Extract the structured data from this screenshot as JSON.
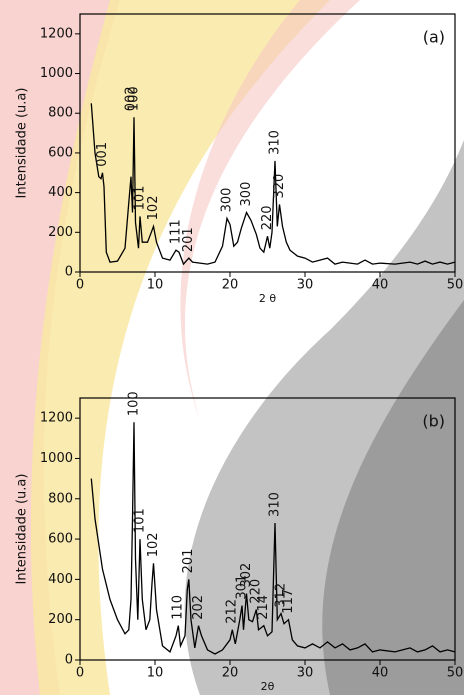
{
  "chart_data": [
    {
      "type": "line",
      "panel_label": "(a)",
      "x_label": "2 θ",
      "y_label": "Intensidade (u.a)",
      "color": "#000000",
      "xlim": [
        0,
        50
      ],
      "xticks": [
        0,
        10,
        20,
        30,
        40,
        50
      ],
      "ylim": [
        0,
        1300
      ],
      "yticks": [
        0,
        200,
        400,
        600,
        800,
        1000,
        1200
      ],
      "x": [
        1.5,
        2,
        2.5,
        2.8,
        3.0,
        3.2,
        3.5,
        4,
        5,
        6,
        6.5,
        6.8,
        7.0,
        7.2,
        7.4,
        7.8,
        8.0,
        8.3,
        9,
        9.5,
        9.8,
        10.2,
        11,
        12,
        12.8,
        13.2,
        13.8,
        14.5,
        15,
        16,
        17,
        18,
        19,
        19.6,
        20,
        20.5,
        21,
        21.5,
        22.2,
        22.8,
        23.5,
        24,
        24.5,
        25,
        25.3,
        25.6,
        26.0,
        26.3,
        26.6,
        27,
        27.5,
        28,
        29,
        30,
        31,
        32,
        33,
        34,
        35,
        36,
        37,
        38,
        39,
        40,
        42,
        44,
        45,
        46,
        47,
        48,
        49,
        50
      ],
      "values": [
        850,
        600,
        480,
        470,
        500,
        430,
        100,
        50,
        55,
        120,
        350,
        480,
        300,
        780,
        250,
        120,
        280,
        150,
        150,
        200,
        230,
        150,
        70,
        60,
        110,
        100,
        40,
        70,
        50,
        45,
        40,
        50,
        130,
        270,
        240,
        130,
        150,
        220,
        300,
        260,
        190,
        120,
        100,
        180,
        120,
        200,
        560,
        230,
        340,
        230,
        150,
        110,
        80,
        70,
        50,
        60,
        70,
        40,
        50,
        45,
        40,
        60,
        40,
        45,
        40,
        50,
        40,
        55,
        40,
        50,
        40,
        50
      ],
      "peaks": [
        {
          "label": "001",
          "x": 3
        },
        {
          "label": "002",
          "x": 6.8
        },
        {
          "label": "100",
          "x": 7.2
        },
        {
          "label": "101",
          "x": 8
        },
        {
          "label": "102",
          "x": 9.8
        },
        {
          "label": "111",
          "x": 12.8
        },
        {
          "label": "201",
          "x": 14.5
        },
        {
          "label": "300",
          "x": 19.6
        },
        {
          "label": "300",
          "x": 22.2
        },
        {
          "label": "220",
          "x": 25
        },
        {
          "label": "310",
          "x": 26
        },
        {
          "label": "320",
          "x": 26.6
        }
      ]
    },
    {
      "type": "line",
      "panel_label": "(b)",
      "x_label": "2θ",
      "y_label": "Intensidade (u.a)",
      "color": "#000000",
      "xlim": [
        0,
        50
      ],
      "xticks": [
        0,
        10,
        20,
        30,
        40,
        50
      ],
      "ylim": [
        0,
        1300
      ],
      "yticks": [
        0,
        200,
        400,
        600,
        800,
        1000,
        1200
      ],
      "x": [
        1.5,
        2,
        3,
        4,
        5,
        6,
        6.5,
        6.8,
        7.0,
        7.2,
        7.4,
        7.7,
        8.0,
        8.3,
        8.8,
        9.3,
        9.6,
        9.8,
        10.2,
        11,
        12,
        12.8,
        13.1,
        13.4,
        14,
        14.3,
        14.5,
        14.8,
        15.3,
        15.8,
        16.2,
        17,
        18,
        19,
        20,
        20.3,
        20.7,
        21.3,
        21.6,
        21.8,
        22.2,
        22.5,
        23,
        23.5,
        23.8,
        24.5,
        25,
        25.6,
        26.0,
        26.3,
        26.8,
        27.2,
        27.8,
        28.3,
        29,
        30,
        31,
        32,
        33,
        34,
        35,
        36,
        37,
        38,
        39,
        40,
        42,
        44,
        45,
        46,
        47,
        48,
        49,
        50
      ],
      "values": [
        900,
        700,
        450,
        300,
        200,
        130,
        150,
        300,
        700,
        1180,
        500,
        200,
        600,
        300,
        150,
        200,
        380,
        480,
        250,
        70,
        40,
        120,
        170,
        70,
        120,
        350,
        400,
        200,
        60,
        170,
        120,
        50,
        30,
        50,
        100,
        150,
        80,
        200,
        270,
        150,
        330,
        200,
        190,
        250,
        150,
        170,
        120,
        140,
        680,
        200,
        230,
        180,
        200,
        100,
        70,
        60,
        80,
        60,
        90,
        60,
        80,
        50,
        60,
        80,
        40,
        50,
        40,
        60,
        40,
        50,
        70,
        40,
        50,
        40
      ],
      "peaks": [
        {
          "label": "100",
          "x": 7.2
        },
        {
          "label": "101",
          "x": 8
        },
        {
          "label": "102",
          "x": 9.8
        },
        {
          "label": "110",
          "x": 13.1
        },
        {
          "label": "201",
          "x": 14.5
        },
        {
          "label": "202",
          "x": 15.8
        },
        {
          "label": "212",
          "x": 20.3
        },
        {
          "label": "301",
          "x": 21.6
        },
        {
          "label": "302",
          "x": 22.2
        },
        {
          "label": "220",
          "x": 23.5
        },
        {
          "label": "214",
          "x": 24.5
        },
        {
          "label": "310",
          "x": 26
        },
        {
          "label": "312",
          "x": 26.8
        },
        {
          "label": "117",
          "x": 27.8
        }
      ]
    }
  ]
}
